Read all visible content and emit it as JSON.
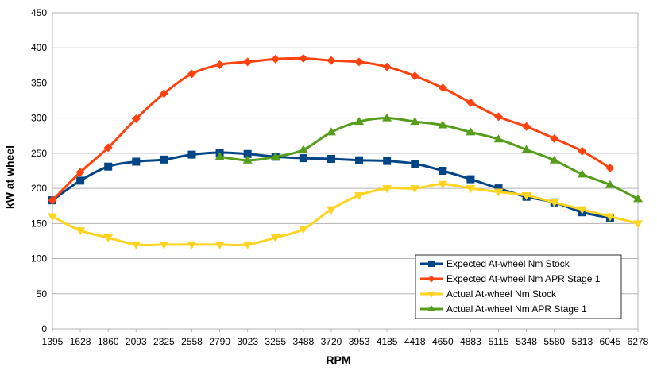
{
  "chart_data": {
    "type": "line",
    "title": "",
    "xlabel": "RPM",
    "ylabel": "kW at wheel",
    "ylim": [
      0,
      450
    ],
    "yticks": [
      0,
      50,
      100,
      150,
      200,
      250,
      300,
      350,
      400,
      450
    ],
    "grid": "horizontal",
    "legend_position": "bottom-right",
    "categories": [
      "1395",
      "1628",
      "1860",
      "2093",
      "2325",
      "2558",
      "2790",
      "3023",
      "3255",
      "3488",
      "3720",
      "3953",
      "4185",
      "4418",
      "4650",
      "4883",
      "5115",
      "5348",
      "5580",
      "5813",
      "6045",
      "6278"
    ],
    "series": [
      {
        "name": "Expected At-wheel Nm Stock",
        "color": "#004586",
        "marker": "square",
        "values": [
          183,
          211,
          231,
          238,
          241,
          248,
          251,
          249,
          245,
          243,
          242,
          240,
          239,
          235,
          225,
          213,
          200,
          188,
          180,
          166,
          158,
          null
        ]
      },
      {
        "name": "Expected At-wheel Nm APR  Stage 1",
        "color": "#ff420e",
        "marker": "diamond",
        "values": [
          183,
          223,
          258,
          299,
          335,
          363,
          376,
          380,
          384,
          385,
          382,
          380,
          373,
          360,
          343,
          322,
          302,
          288,
          271,
          253,
          229,
          null
        ]
      },
      {
        "name": "Actual At-wheel Nm Stock",
        "color": "#ffd320",
        "marker": "triangle-down",
        "values": [
          160,
          140,
          130,
          120,
          120,
          120,
          120,
          120,
          130,
          142,
          170,
          190,
          200,
          200,
          206,
          200,
          195,
          190,
          180,
          170,
          160,
          150
        ]
      },
      {
        "name": "Actual At-wheel Nm APR  Stage 1",
        "color": "#579d1c",
        "marker": "triangle-up",
        "values": [
          null,
          null,
          null,
          null,
          null,
          null,
          245,
          240,
          245,
          255,
          280,
          295,
          300,
          295,
          290,
          280,
          270,
          255,
          240,
          220,
          205,
          185
        ]
      }
    ]
  }
}
